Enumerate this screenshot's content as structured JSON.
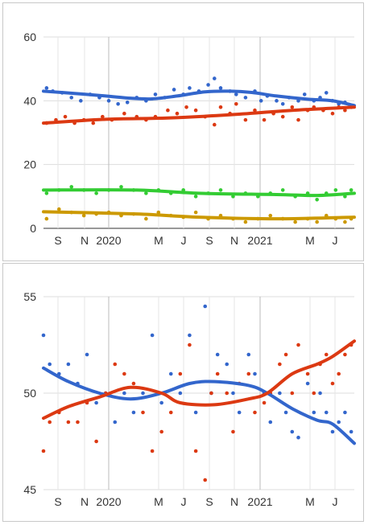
{
  "chart_data": [
    {
      "type": "scatter",
      "ylim": [
        0,
        60
      ],
      "yticks": [
        "0",
        "20",
        "40",
        "60"
      ],
      "xticks": [
        "S",
        "N",
        "2020",
        "M",
        "J",
        "S",
        "N",
        "2021",
        "M",
        "J"
      ],
      "x_start": "2019-08",
      "x_end": "2021-07",
      "grid": true,
      "series": [
        {
          "color": "#3366cc",
          "trend": [
            [
              0,
              43
            ],
            [
              0.1,
              42.3
            ],
            [
              0.2,
              41.5
            ],
            [
              0.28,
              40.8
            ],
            [
              0.35,
              40.6
            ],
            [
              0.43,
              41.5
            ],
            [
              0.52,
              42.8
            ],
            [
              0.6,
              43
            ],
            [
              0.67,
              42.6
            ],
            [
              0.75,
              41.5
            ],
            [
              0.85,
              40.5
            ],
            [
              0.93,
              40
            ],
            [
              1,
              38.5
            ]
          ],
          "points": [
            [
              0.01,
              44
            ],
            [
              0.03,
              43
            ],
            [
              0.06,
              42.5
            ],
            [
              0.09,
              41
            ],
            [
              0.12,
              40
            ],
            [
              0.15,
              42
            ],
            [
              0.18,
              41
            ],
            [
              0.21,
              40
            ],
            [
              0.24,
              39
            ],
            [
              0.27,
              39.5
            ],
            [
              0.3,
              41
            ],
            [
              0.33,
              40
            ],
            [
              0.36,
              42
            ],
            [
              0.39,
              41
            ],
            [
              0.42,
              43.5
            ],
            [
              0.45,
              42
            ],
            [
              0.47,
              44
            ],
            [
              0.5,
              43
            ],
            [
              0.53,
              45
            ],
            [
              0.55,
              47
            ],
            [
              0.57,
              44
            ],
            [
              0.6,
              43
            ],
            [
              0.62,
              42
            ],
            [
              0.65,
              41
            ],
            [
              0.68,
              43
            ],
            [
              0.7,
              40
            ],
            [
              0.72,
              41.5
            ],
            [
              0.75,
              40
            ],
            [
              0.77,
              39
            ],
            [
              0.79,
              41
            ],
            [
              0.82,
              40
            ],
            [
              0.84,
              42
            ],
            [
              0.87,
              40
            ],
            [
              0.89,
              41
            ],
            [
              0.91,
              42.5
            ],
            [
              0.93,
              40
            ],
            [
              0.95,
              39
            ],
            [
              0.97,
              39.5
            ],
            [
              0.99,
              38
            ]
          ]
        },
        {
          "color": "#dc3912",
          "trend": [
            [
              0,
              33
            ],
            [
              0.2,
              34.2
            ],
            [
              0.4,
              34.6
            ],
            [
              0.6,
              35.6
            ],
            [
              0.8,
              37
            ],
            [
              1,
              38
            ]
          ],
          "points": [
            [
              0.01,
              33
            ],
            [
              0.04,
              34
            ],
            [
              0.07,
              35
            ],
            [
              0.1,
              33
            ],
            [
              0.13,
              34
            ],
            [
              0.16,
              33
            ],
            [
              0.19,
              35
            ],
            [
              0.22,
              34
            ],
            [
              0.26,
              36
            ],
            [
              0.3,
              35
            ],
            [
              0.33,
              34
            ],
            [
              0.36,
              35
            ],
            [
              0.4,
              37
            ],
            [
              0.43,
              36
            ],
            [
              0.46,
              38
            ],
            [
              0.49,
              37
            ],
            [
              0.52,
              35
            ],
            [
              0.55,
              32.5
            ],
            [
              0.57,
              38
            ],
            [
              0.6,
              36
            ],
            [
              0.62,
              39
            ],
            [
              0.65,
              34
            ],
            [
              0.68,
              37
            ],
            [
              0.71,
              34
            ],
            [
              0.74,
              36
            ],
            [
              0.77,
              35
            ],
            [
              0.8,
              38
            ],
            [
              0.82,
              34
            ],
            [
              0.85,
              37
            ],
            [
              0.87,
              38
            ],
            [
              0.9,
              37
            ],
            [
              0.93,
              36
            ],
            [
              0.95,
              38
            ],
            [
              0.97,
              37
            ],
            [
              0.99,
              38
            ]
          ]
        },
        {
          "color": "#33cc33",
          "trend": [
            [
              0,
              12
            ],
            [
              0.3,
              12
            ],
            [
              0.5,
              11
            ],
            [
              0.75,
              10.6
            ],
            [
              0.88,
              10.3
            ],
            [
              1,
              11
            ]
          ],
          "points": [
            [
              0.01,
              11
            ],
            [
              0.05,
              12
            ],
            [
              0.09,
              13
            ],
            [
              0.13,
              12
            ],
            [
              0.17,
              11
            ],
            [
              0.21,
              12
            ],
            [
              0.25,
              13
            ],
            [
              0.29,
              12
            ],
            [
              0.33,
              11
            ],
            [
              0.37,
              12
            ],
            [
              0.41,
              11
            ],
            [
              0.45,
              12
            ],
            [
              0.49,
              10
            ],
            [
              0.53,
              11
            ],
            [
              0.57,
              12
            ],
            [
              0.61,
              10
            ],
            [
              0.65,
              11
            ],
            [
              0.69,
              10
            ],
            [
              0.73,
              11
            ],
            [
              0.77,
              12
            ],
            [
              0.81,
              10
            ],
            [
              0.85,
              11
            ],
            [
              0.88,
              9
            ],
            [
              0.91,
              11
            ],
            [
              0.94,
              12
            ],
            [
              0.97,
              10
            ],
            [
              0.99,
              12
            ]
          ]
        },
        {
          "color": "#cc9900",
          "trend": [
            [
              0,
              5.2
            ],
            [
              0.3,
              4.5
            ],
            [
              0.5,
              3.5
            ],
            [
              0.75,
              3
            ],
            [
              1,
              3.5
            ]
          ],
          "points": [
            [
              0.01,
              3
            ],
            [
              0.05,
              6
            ],
            [
              0.09,
              5
            ],
            [
              0.13,
              4
            ],
            [
              0.17,
              4.5
            ],
            [
              0.21,
              5
            ],
            [
              0.25,
              4
            ],
            [
              0.29,
              4.5
            ],
            [
              0.33,
              3
            ],
            [
              0.37,
              5
            ],
            [
              0.41,
              4
            ],
            [
              0.45,
              3.5
            ],
            [
              0.49,
              5
            ],
            [
              0.53,
              3
            ],
            [
              0.57,
              4
            ],
            [
              0.61,
              3
            ],
            [
              0.65,
              2
            ],
            [
              0.69,
              3
            ],
            [
              0.73,
              4
            ],
            [
              0.77,
              3
            ],
            [
              0.81,
              2
            ],
            [
              0.85,
              3
            ],
            [
              0.88,
              2
            ],
            [
              0.91,
              4
            ],
            [
              0.94,
              3
            ],
            [
              0.97,
              2
            ],
            [
              0.99,
              3
            ]
          ]
        }
      ]
    },
    {
      "type": "scatter",
      "ylim": [
        45,
        55
      ],
      "yticks": [
        "45",
        "50",
        "55"
      ],
      "xticks": [
        "S",
        "N",
        "2020",
        "M",
        "J",
        "S",
        "N",
        "2021",
        "M",
        "J"
      ],
      "x_start": "2019-08",
      "x_end": "2021-07",
      "grid": true,
      "series": [
        {
          "color": "#3366cc",
          "trend": [
            [
              0,
              51.3
            ],
            [
              0.08,
              50.6
            ],
            [
              0.18,
              50
            ],
            [
              0.28,
              49.7
            ],
            [
              0.38,
              50
            ],
            [
              0.47,
              50.5
            ],
            [
              0.55,
              50.6
            ],
            [
              0.66,
              50.4
            ],
            [
              0.72,
              50
            ],
            [
              0.8,
              49.2
            ],
            [
              0.88,
              48.6
            ],
            [
              0.93,
              48.4
            ],
            [
              1,
              47.4
            ]
          ],
          "points": [
            [
              0,
              53
            ],
            [
              0.02,
              51.5
            ],
            [
              0.05,
              51
            ],
            [
              0.08,
              51.5
            ],
            [
              0.11,
              50.5
            ],
            [
              0.14,
              52
            ],
            [
              0.17,
              49.5
            ],
            [
              0.2,
              50
            ],
            [
              0.23,
              48.5
            ],
            [
              0.26,
              50
            ],
            [
              0.29,
              49
            ],
            [
              0.32,
              50
            ],
            [
              0.35,
              53
            ],
            [
              0.38,
              49.5
            ],
            [
              0.41,
              51
            ],
            [
              0.44,
              50
            ],
            [
              0.47,
              53
            ],
            [
              0.49,
              49
            ],
            [
              0.52,
              54.5
            ],
            [
              0.54,
              50
            ],
            [
              0.56,
              52
            ],
            [
              0.59,
              51.5
            ],
            [
              0.61,
              50
            ],
            [
              0.63,
              49
            ],
            [
              0.66,
              52
            ],
            [
              0.68,
              51
            ],
            [
              0.71,
              50
            ],
            [
              0.73,
              48.5
            ],
            [
              0.76,
              50
            ],
            [
              0.78,
              49
            ],
            [
              0.8,
              48
            ],
            [
              0.82,
              47.7
            ],
            [
              0.85,
              50.5
            ],
            [
              0.87,
              49
            ],
            [
              0.89,
              50
            ],
            [
              0.91,
              49
            ],
            [
              0.93,
              48
            ],
            [
              0.95,
              48.5
            ],
            [
              0.97,
              49
            ],
            [
              0.99,
              48
            ]
          ]
        },
        {
          "color": "#dc3912",
          "trend": [
            [
              0,
              48.7
            ],
            [
              0.08,
              49.3
            ],
            [
              0.18,
              49.8
            ],
            [
              0.28,
              50.3
            ],
            [
              0.38,
              50
            ],
            [
              0.44,
              49.5
            ],
            [
              0.55,
              49.4
            ],
            [
              0.66,
              49.7
            ],
            [
              0.72,
              50
            ],
            [
              0.8,
              51
            ],
            [
              0.88,
              51.5
            ],
            [
              0.93,
              51.9
            ],
            [
              1,
              52.7
            ]
          ],
          "points": [
            [
              0,
              47
            ],
            [
              0.02,
              48.5
            ],
            [
              0.05,
              49
            ],
            [
              0.08,
              48.5
            ],
            [
              0.11,
              48.5
            ],
            [
              0.14,
              49.5
            ],
            [
              0.17,
              47.5
            ],
            [
              0.2,
              50
            ],
            [
              0.23,
              51.5
            ],
            [
              0.26,
              51
            ],
            [
              0.29,
              50.5
            ],
            [
              0.32,
              49
            ],
            [
              0.35,
              47
            ],
            [
              0.38,
              48
            ],
            [
              0.41,
              49
            ],
            [
              0.44,
              51
            ],
            [
              0.47,
              52.5
            ],
            [
              0.49,
              47
            ],
            [
              0.52,
              45.5
            ],
            [
              0.54,
              50
            ],
            [
              0.56,
              51
            ],
            [
              0.59,
              50
            ],
            [
              0.61,
              48
            ],
            [
              0.63,
              50.5
            ],
            [
              0.66,
              51
            ],
            [
              0.68,
              49
            ],
            [
              0.71,
              49.5
            ],
            [
              0.73,
              50
            ],
            [
              0.76,
              51.5
            ],
            [
              0.78,
              52
            ],
            [
              0.8,
              50
            ],
            [
              0.82,
              52.5
            ],
            [
              0.85,
              51
            ],
            [
              0.87,
              50
            ],
            [
              0.89,
              51.5
            ],
            [
              0.91,
              52
            ],
            [
              0.93,
              50.5
            ],
            [
              0.95,
              51
            ],
            [
              0.97,
              52
            ],
            [
              0.99,
              52.5
            ]
          ]
        }
      ]
    }
  ]
}
